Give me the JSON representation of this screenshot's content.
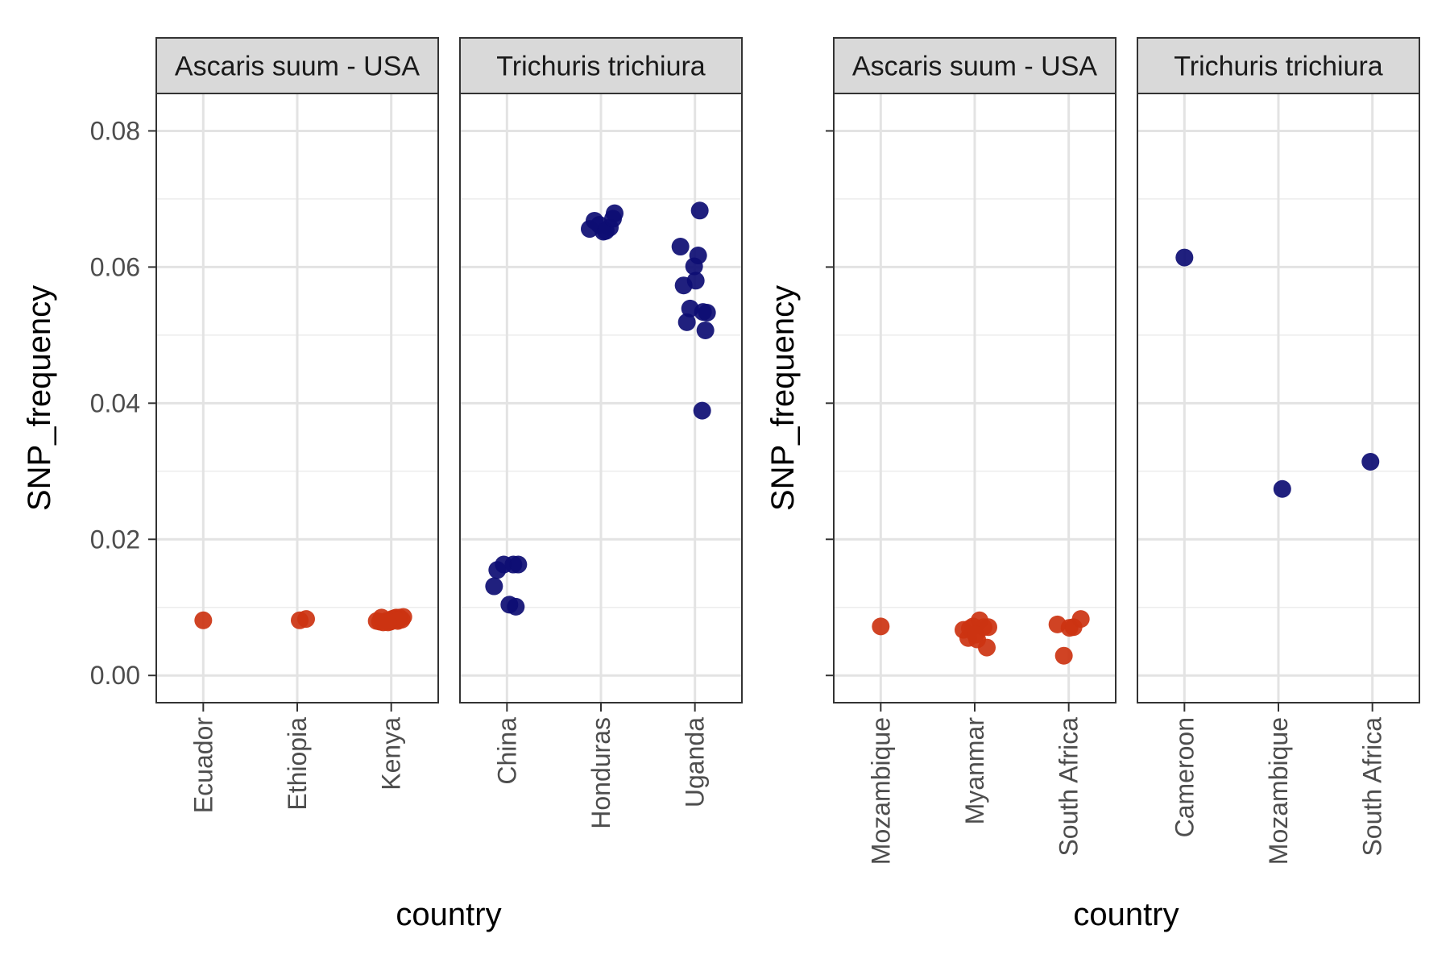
{
  "chart_data": [
    {
      "type": "scatter",
      "xlabel": "country",
      "ylabel": "SNP_frequency",
      "ylim": [
        -0.004,
        0.0855
      ],
      "yticks": [
        "0.00",
        "0.02",
        "0.04",
        "0.06",
        "0.08"
      ],
      "show_y_tick_labels": true,
      "grid": true,
      "facets": [
        {
          "strip": "Ascaris suum - USA",
          "color": "#cc3311",
          "categories": [
            "Ecuador",
            "Ethiopia",
            "Kenya"
          ],
          "points": [
            {
              "x": "Ecuador",
              "y": 0.0081
            },
            {
              "x": "Ethiopia",
              "y": 0.0081
            },
            {
              "x": "Ethiopia",
              "y": 0.0083
            },
            {
              "x": "Kenya",
              "y": 0.0085
            },
            {
              "x": "Kenya",
              "y": 0.0079
            },
            {
              "x": "Kenya",
              "y": 0.0086
            },
            {
              "x": "Kenya",
              "y": 0.008
            },
            {
              "x": "Kenya",
              "y": 0.0083
            },
            {
              "x": "Kenya",
              "y": 0.0085
            },
            {
              "x": "Kenya",
              "y": 0.0078
            },
            {
              "x": "Kenya",
              "y": 0.0082
            },
            {
              "x": "Kenya",
              "y": 0.008
            },
            {
              "x": "Kenya",
              "y": 0.0084
            },
            {
              "x": "Kenya",
              "y": 0.0079
            },
            {
              "x": "Kenya",
              "y": 0.0082
            },
            {
              "x": "Kenya",
              "y": 0.0085
            },
            {
              "x": "Kenya",
              "y": 0.008
            },
            {
              "x": "Kenya",
              "y": 0.0078
            }
          ]
        },
        {
          "strip": "Trichuris trichiura",
          "color": "#0d0d73",
          "categories": [
            "China",
            "Honduras",
            "Uganda"
          ],
          "points": [
            {
              "x": "China",
              "y": 0.0155
            },
            {
              "x": "China",
              "y": 0.0163
            },
            {
              "x": "China",
              "y": 0.0163
            },
            {
              "x": "China",
              "y": 0.0163
            },
            {
              "x": "China",
              "y": 0.0131
            },
            {
              "x": "China",
              "y": 0.0104
            },
            {
              "x": "China",
              "y": 0.0101
            },
            {
              "x": "Honduras",
              "y": 0.0652
            },
            {
              "x": "Honduras",
              "y": 0.0658
            },
            {
              "x": "Honduras",
              "y": 0.0668
            },
            {
              "x": "Honduras",
              "y": 0.0679
            },
            {
              "x": "Honduras",
              "y": 0.0662
            },
            {
              "x": "Honduras",
              "y": 0.0653
            },
            {
              "x": "Honduras",
              "y": 0.0656
            },
            {
              "x": "Honduras",
              "y": 0.0671
            },
            {
              "x": "Uganda",
              "y": 0.0683
            },
            {
              "x": "Uganda",
              "y": 0.0573
            },
            {
              "x": "Uganda",
              "y": 0.0533
            },
            {
              "x": "Uganda",
              "y": 0.0539
            },
            {
              "x": "Uganda",
              "y": 0.058
            },
            {
              "x": "Uganda",
              "y": 0.0534
            },
            {
              "x": "Uganda",
              "y": 0.0519
            },
            {
              "x": "Uganda",
              "y": 0.0507
            },
            {
              "x": "Uganda",
              "y": 0.063
            },
            {
              "x": "Uganda",
              "y": 0.0617
            },
            {
              "x": "Uganda",
              "y": 0.0601
            },
            {
              "x": "Uganda",
              "y": 0.0389
            }
          ]
        }
      ]
    },
    {
      "type": "scatter",
      "xlabel": "country",
      "ylabel": "SNP_frequency",
      "ylim": [
        -0.004,
        0.0855
      ],
      "yticks": [
        "0.00",
        "0.02",
        "0.04",
        "0.06",
        "0.08"
      ],
      "show_y_tick_labels": false,
      "grid": true,
      "facets": [
        {
          "strip": "Ascaris suum - USA",
          "color": "#cc3311",
          "categories": [
            "Mozambique",
            "Myanmar",
            "South Africa"
          ],
          "points": [
            {
              "x": "Mozambique",
              "y": 0.0072
            },
            {
              "x": "Myanmar",
              "y": 0.0053
            },
            {
              "x": "Myanmar",
              "y": 0.0071
            },
            {
              "x": "Myanmar",
              "y": 0.0055
            },
            {
              "x": "Myanmar",
              "y": 0.0071
            },
            {
              "x": "Myanmar",
              "y": 0.0072
            },
            {
              "x": "Myanmar",
              "y": 0.0081
            },
            {
              "x": "Myanmar",
              "y": 0.0067
            },
            {
              "x": "Myanmar",
              "y": 0.0041
            },
            {
              "x": "Myanmar",
              "y": 0.0069
            },
            {
              "x": "Myanmar",
              "y": 0.006
            },
            {
              "x": "South Africa",
              "y": 0.0071
            },
            {
              "x": "South Africa",
              "y": 0.0075
            },
            {
              "x": "South Africa",
              "y": 0.0083
            },
            {
              "x": "South Africa",
              "y": 0.0029
            },
            {
              "x": "South Africa",
              "y": 0.007
            }
          ]
        },
        {
          "strip": "Trichuris trichiura",
          "color": "#0d0d73",
          "categories": [
            "Cameroon",
            "Mozambique",
            "South Africa"
          ],
          "points": [
            {
              "x": "Cameroon",
              "y": 0.0614
            },
            {
              "x": "Mozambique",
              "y": 0.0274
            },
            {
              "x": "South Africa",
              "y": 0.0314
            }
          ]
        }
      ]
    }
  ]
}
